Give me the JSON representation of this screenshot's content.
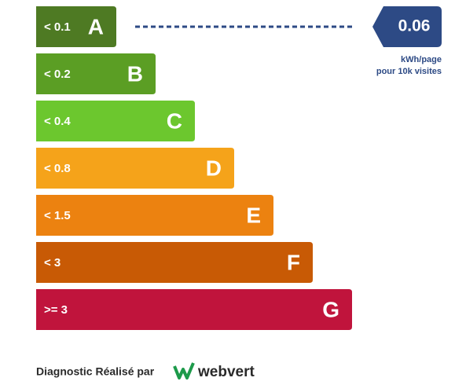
{
  "grades": [
    {
      "threshold": "< 0.1",
      "letter": "A",
      "color": "#4e7a23"
    },
    {
      "threshold": "< 0.2",
      "letter": "B",
      "color": "#5b9e24"
    },
    {
      "threshold": "< 0.4",
      "letter": "C",
      "color": "#6cc72e"
    },
    {
      "threshold": "< 0.8",
      "letter": "D",
      "color": "#f5a31a"
    },
    {
      "threshold": "< 1.5",
      "letter": "E",
      "color": "#ec8210"
    },
    {
      "threshold": "< 3",
      "letter": "F",
      "color": "#c85a05"
    },
    {
      "threshold": ">= 3",
      "letter": "G",
      "color": "#c0143c"
    }
  ],
  "indicator": {
    "value": "0.06",
    "unit_line1": "kWh/page",
    "unit_line2": "pour 10k visites",
    "color": "#2d4a85"
  },
  "footer": {
    "text": "Diagnostic Réalisé par",
    "brand": "webvert"
  }
}
